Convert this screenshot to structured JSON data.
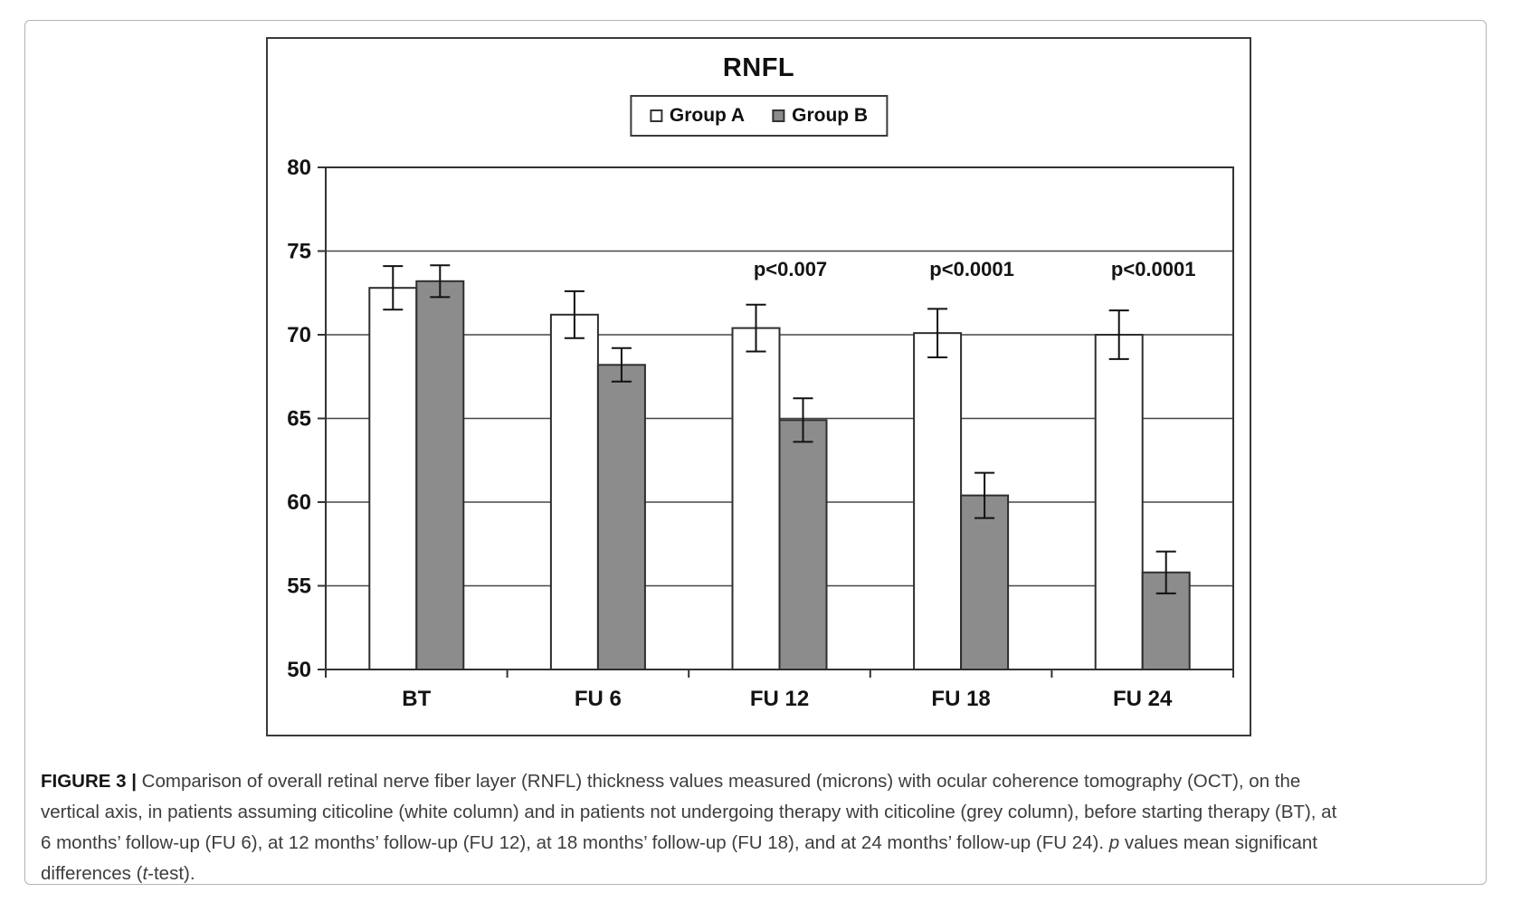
{
  "chart_data": {
    "type": "bar",
    "title": "RNFL",
    "categories": [
      "BT",
      "FU 6",
      "FU 12",
      "FU 18",
      "FU 24"
    ],
    "series": [
      {
        "name": "Group A",
        "color": "#ffffff",
        "values": [
          72.8,
          71.2,
          70.4,
          70.1,
          70.0
        ],
        "errors": [
          1.3,
          1.4,
          1.4,
          1.45,
          1.45
        ]
      },
      {
        "name": "Group B",
        "color": "#8c8c8c",
        "values": [
          73.2,
          68.2,
          64.9,
          60.4,
          55.8
        ],
        "errors": [
          0.95,
          1.0,
          1.3,
          1.35,
          1.25
        ]
      }
    ],
    "annotations": [
      {
        "category": "FU 12",
        "text": "p<0.007"
      },
      {
        "category": "FU 18",
        "text": "p<0.0001"
      },
      {
        "category": "FU 24",
        "text": "p<0.0001"
      }
    ],
    "ylim": [
      50,
      80
    ],
    "yticks": [
      50,
      55,
      60,
      65,
      70,
      75,
      80
    ],
    "grid": true,
    "legend_position": "top",
    "xlabel": "",
    "ylabel": "",
    "bar_border_color": "#2e2e2e",
    "gridline_color": "#474747"
  },
  "caption": {
    "lines": [
      [
        {
          "text": "FIGURE 3 | ",
          "style": "bold"
        },
        {
          "text": "Comparison of overall retinal nerve fiber layer (RNFL) thickness values measured (microns) with ocular coherence tomography (OCT), on the",
          "style": "normal"
        }
      ],
      [
        {
          "text": "vertical axis, in patients assuming citicoline (white column) and in patients not undergoing therapy with citicoline (grey column), before starting therapy (BT), at",
          "style": "normal"
        }
      ],
      [
        {
          "text": "6 months’ follow-up (FU 6), at 12 months’ follow-up (FU 12), at 18 months’ follow-up (FU 18), and at 24 months’ follow-up (FU 24). ",
          "style": "normal"
        },
        {
          "text": "p",
          "style": "italic"
        },
        {
          "text": " values mean significant",
          "style": "normal"
        }
      ],
      [
        {
          "text": "differences (",
          "style": "normal"
        },
        {
          "text": "t",
          "style": "italic"
        },
        {
          "text": "-test).",
          "style": "normal"
        }
      ]
    ]
  }
}
